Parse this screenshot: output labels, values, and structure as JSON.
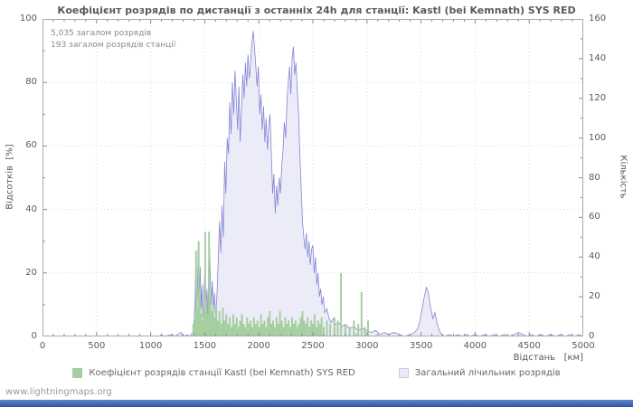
{
  "page": {
    "footer": "www.lightningmaps.org"
  },
  "chart_data": {
    "type": "area",
    "title": "Коефіцієнт розрядів по дистанції з останніх 24h для станції: Kastl (bei Kemnath) SYS RED",
    "annotations": [
      "5,035 загалом розрядів",
      "193 загалом розрядів станції"
    ],
    "xlabel": "Відстань   [км]",
    "ylabel_left": "Відсотків  [%]",
    "ylabel_right": "Кількість",
    "x_range": [
      0,
      5000
    ],
    "x_ticks": [
      0,
      500,
      1000,
      1500,
      2000,
      2500,
      3000,
      3500,
      4000,
      4500,
      5000
    ],
    "y_left_range": [
      0,
      100
    ],
    "y_left_ticks": [
      0,
      20,
      40,
      60,
      80,
      100
    ],
    "y_right_range": [
      0,
      160
    ],
    "y_right_ticks": [
      0,
      20,
      40,
      60,
      80,
      100,
      120,
      140,
      160
    ],
    "grid": true,
    "legend_position": "bottom",
    "series": [
      {
        "name": "Коефіцієнт розрядів станції Kastl (bei Kemnath) SYS RED",
        "render": "bar",
        "axis": "left",
        "unit": "%",
        "color": "#a5cfa0",
        "points": [
          [
            1395,
            4
          ],
          [
            1410,
            6
          ],
          [
            1420,
            27
          ],
          [
            1432,
            9
          ],
          [
            1444,
            30
          ],
          [
            1456,
            13
          ],
          [
            1468,
            7
          ],
          [
            1480,
            5
          ],
          [
            1492,
            10
          ],
          [
            1504,
            33
          ],
          [
            1516,
            11
          ],
          [
            1528,
            7
          ],
          [
            1540,
            33
          ],
          [
            1552,
            13
          ],
          [
            1564,
            8
          ],
          [
            1578,
            10
          ],
          [
            1592,
            6
          ],
          [
            1606,
            9
          ],
          [
            1620,
            5
          ],
          [
            1636,
            8
          ],
          [
            1652,
            4
          ],
          [
            1668,
            9
          ],
          [
            1684,
            5
          ],
          [
            1700,
            7
          ],
          [
            1716,
            4
          ],
          [
            1732,
            6
          ],
          [
            1748,
            3
          ],
          [
            1764,
            7
          ],
          [
            1780,
            4
          ],
          [
            1796,
            6
          ],
          [
            1812,
            3
          ],
          [
            1828,
            5
          ],
          [
            1844,
            7
          ],
          [
            1860,
            4
          ],
          [
            1876,
            3
          ],
          [
            1892,
            6
          ],
          [
            1908,
            4
          ],
          [
            1924,
            5
          ],
          [
            1940,
            3
          ],
          [
            1956,
            6
          ],
          [
            1972,
            4
          ],
          [
            1988,
            5
          ],
          [
            2004,
            3
          ],
          [
            2020,
            7
          ],
          [
            2036,
            4
          ],
          [
            2052,
            5
          ],
          [
            2068,
            3
          ],
          [
            2084,
            6
          ],
          [
            2100,
            8
          ],
          [
            2116,
            4
          ],
          [
            2132,
            5
          ],
          [
            2148,
            3
          ],
          [
            2164,
            6
          ],
          [
            2180,
            4
          ],
          [
            2196,
            8
          ],
          [
            2212,
            5
          ],
          [
            2228,
            3
          ],
          [
            2244,
            6
          ],
          [
            2260,
            4
          ],
          [
            2276,
            5
          ],
          [
            2292,
            3
          ],
          [
            2308,
            6
          ],
          [
            2324,
            4
          ],
          [
            2340,
            5
          ],
          [
            2356,
            3
          ],
          [
            2372,
            4
          ],
          [
            2388,
            6
          ],
          [
            2404,
            8
          ],
          [
            2420,
            5
          ],
          [
            2436,
            4
          ],
          [
            2452,
            6
          ],
          [
            2468,
            3
          ],
          [
            2484,
            5
          ],
          [
            2500,
            4
          ],
          [
            2516,
            7
          ],
          [
            2532,
            3
          ],
          [
            2548,
            5
          ],
          [
            2564,
            4
          ],
          [
            2580,
            6
          ],
          [
            2600,
            3
          ],
          [
            2630,
            5
          ],
          [
            2660,
            4
          ],
          [
            2700,
            6
          ],
          [
            2730,
            5
          ],
          [
            2760,
            20
          ],
          [
            2800,
            4
          ],
          [
            2840,
            3
          ],
          [
            2880,
            5
          ],
          [
            2920,
            4
          ],
          [
            2950,
            14
          ],
          [
            2980,
            3
          ],
          [
            3010,
            5
          ]
        ]
      },
      {
        "name": "Загальний лічильник розрядів",
        "render": "area",
        "axis": "right",
        "unit": "count",
        "fill": "#ececf9",
        "stroke": "#8585d6",
        "points": [
          [
            0,
            0
          ],
          [
            1080,
            0
          ],
          [
            1100,
            1
          ],
          [
            1120,
            0
          ],
          [
            1200,
            1
          ],
          [
            1220,
            0
          ],
          [
            1280,
            2
          ],
          [
            1300,
            0
          ],
          [
            1340,
            1
          ],
          [
            1360,
            0
          ],
          [
            1390,
            2
          ],
          [
            1400,
            6
          ],
          [
            1410,
            18
          ],
          [
            1418,
            40
          ],
          [
            1426,
            12
          ],
          [
            1434,
            30
          ],
          [
            1442,
            48
          ],
          [
            1450,
            22
          ],
          [
            1458,
            35
          ],
          [
            1466,
            14
          ],
          [
            1474,
            26
          ],
          [
            1482,
            10
          ],
          [
            1490,
            20
          ],
          [
            1500,
            32
          ],
          [
            1510,
            12
          ],
          [
            1520,
            24
          ],
          [
            1530,
            8
          ],
          [
            1540,
            50
          ],
          [
            1550,
            34
          ],
          [
            1560,
            16
          ],
          [
            1570,
            28
          ],
          [
            1580,
            12
          ],
          [
            1590,
            22
          ],
          [
            1600,
            10
          ],
          [
            1612,
            20
          ],
          [
            1624,
            36
          ],
          [
            1636,
            58
          ],
          [
            1648,
            42
          ],
          [
            1660,
            66
          ],
          [
            1672,
            50
          ],
          [
            1684,
            88
          ],
          [
            1696,
            72
          ],
          [
            1708,
            100
          ],
          [
            1720,
            92
          ],
          [
            1732,
            118
          ],
          [
            1744,
            102
          ],
          [
            1756,
            128
          ],
          [
            1768,
            112
          ],
          [
            1780,
            134
          ],
          [
            1792,
            120
          ],
          [
            1804,
            104
          ],
          [
            1816,
            126
          ],
          [
            1828,
            98
          ],
          [
            1840,
            116
          ],
          [
            1852,
            132
          ],
          [
            1864,
            120
          ],
          [
            1876,
            138
          ],
          [
            1888,
            126
          ],
          [
            1900,
            142
          ],
          [
            1912,
            130
          ],
          [
            1924,
            138
          ],
          [
            1936,
            148
          ],
          [
            1948,
            154
          ],
          [
            1960,
            146
          ],
          [
            1972,
            136
          ],
          [
            1984,
            126
          ],
          [
            1996,
            136
          ],
          [
            2008,
            112
          ],
          [
            2020,
            122
          ],
          [
            2032,
            104
          ],
          [
            2044,
            116
          ],
          [
            2056,
            98
          ],
          [
            2068,
            110
          ],
          [
            2080,
            94
          ],
          [
            2092,
            106
          ],
          [
            2104,
            112
          ],
          [
            2116,
            92
          ],
          [
            2128,
            72
          ],
          [
            2140,
            82
          ],
          [
            2152,
            62
          ],
          [
            2164,
            76
          ],
          [
            2176,
            66
          ],
          [
            2188,
            80
          ],
          [
            2200,
            72
          ],
          [
            2212,
            86
          ],
          [
            2224,
            94
          ],
          [
            2236,
            108
          ],
          [
            2248,
            100
          ],
          [
            2260,
            118
          ],
          [
            2272,
            128
          ],
          [
            2284,
            136
          ],
          [
            2296,
            122
          ],
          [
            2308,
            140
          ],
          [
            2320,
            146
          ],
          [
            2332,
            132
          ],
          [
            2344,
            138
          ],
          [
            2356,
            124
          ],
          [
            2368,
            112
          ],
          [
            2380,
            92
          ],
          [
            2392,
            74
          ],
          [
            2404,
            58
          ],
          [
            2416,
            50
          ],
          [
            2428,
            44
          ],
          [
            2440,
            52
          ],
          [
            2452,
            40
          ],
          [
            2464,
            48
          ],
          [
            2476,
            36
          ],
          [
            2488,
            44
          ],
          [
            2500,
            46
          ],
          [
            2512,
            32
          ],
          [
            2524,
            40
          ],
          [
            2536,
            26
          ],
          [
            2548,
            32
          ],
          [
            2560,
            20
          ],
          [
            2572,
            24
          ],
          [
            2584,
            16
          ],
          [
            2596,
            20
          ],
          [
            2610,
            12
          ],
          [
            2630,
            14
          ],
          [
            2650,
            9
          ],
          [
            2670,
            7
          ],
          [
            2690,
            9
          ],
          [
            2710,
            6
          ],
          [
            2740,
            7
          ],
          [
            2770,
            5
          ],
          [
            2800,
            6
          ],
          [
            2840,
            4
          ],
          [
            2880,
            5
          ],
          [
            2920,
            3
          ],
          [
            2960,
            4
          ],
          [
            3000,
            3
          ],
          [
            3040,
            2
          ],
          [
            3080,
            3
          ],
          [
            3120,
            1
          ],
          [
            3160,
            2
          ],
          [
            3200,
            1
          ],
          [
            3250,
            2
          ],
          [
            3300,
            1
          ],
          [
            3350,
            0
          ],
          [
            3400,
            1
          ],
          [
            3440,
            2
          ],
          [
            3470,
            4
          ],
          [
            3490,
            8
          ],
          [
            3510,
            14
          ],
          [
            3530,
            20
          ],
          [
            3550,
            25
          ],
          [
            3570,
            21
          ],
          [
            3590,
            14
          ],
          [
            3610,
            9
          ],
          [
            3630,
            12
          ],
          [
            3650,
            6
          ],
          [
            3670,
            3
          ],
          [
            3690,
            1
          ],
          [
            3720,
            0
          ],
          [
            3760,
            1
          ],
          [
            3800,
            0
          ],
          [
            3840,
            1
          ],
          [
            3880,
            0
          ],
          [
            3920,
            1
          ],
          [
            3960,
            0
          ],
          [
            4000,
            1
          ],
          [
            4040,
            0
          ],
          [
            4090,
            1
          ],
          [
            4130,
            0
          ],
          [
            4180,
            1
          ],
          [
            4220,
            0
          ],
          [
            4270,
            1
          ],
          [
            4310,
            0
          ],
          [
            4360,
            1
          ],
          [
            4400,
            2
          ],
          [
            4440,
            1
          ],
          [
            4480,
            0
          ],
          [
            4520,
            1
          ],
          [
            4560,
            0
          ],
          [
            4610,
            1
          ],
          [
            4650,
            0
          ],
          [
            4700,
            1
          ],
          [
            4740,
            0
          ],
          [
            4790,
            1
          ],
          [
            4830,
            0
          ],
          [
            4880,
            1
          ],
          [
            4920,
            0
          ],
          [
            4960,
            1
          ],
          [
            5000,
            0
          ]
        ]
      }
    ]
  }
}
